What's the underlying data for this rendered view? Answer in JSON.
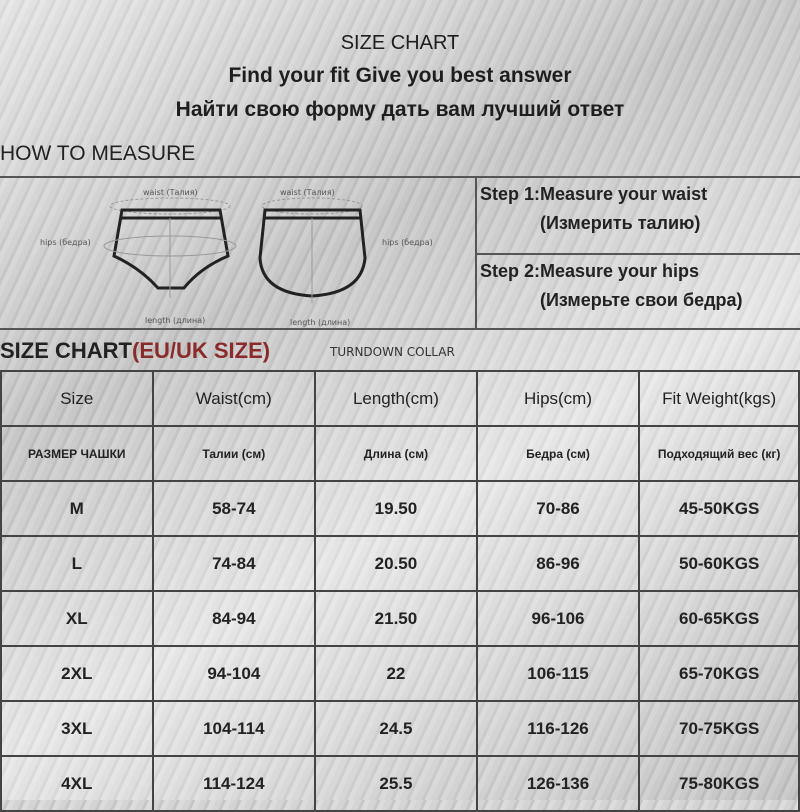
{
  "header": {
    "title": "SIZE CHART",
    "subtitle_en": "Find your fit Give you best answer",
    "subtitle_ru": "Найти свою форму дать вам лучший ответ"
  },
  "measure": {
    "heading": "HOW TO MEASURE",
    "labels": {
      "waist": "waist (Талия)",
      "hips": "hips (бедра)",
      "length": "length (длина)"
    },
    "steps": [
      {
        "en": "Step 1:Measure your waist",
        "ru": "(Измерить талию)"
      },
      {
        "en": "Step 2:Measure your hips",
        "ru": "(Измерьте свои бедра)"
      }
    ]
  },
  "size_chart": {
    "heading": "SIZE CHART",
    "heading_accent": "(EU/UK SIZE)",
    "overlay_text": "TURNDOWN COLLAR",
    "columns": [
      "Size",
      "Waist(cm)",
      "Length(cm)",
      "Hips(cm)",
      "Fit  Weight(kgs)"
    ],
    "columns_ru": [
      "РАЗМЕР ЧАШКИ",
      "Талии (см)",
      "Длина (см)",
      "Бедра (см)",
      "Подходящий вес (кг)"
    ],
    "rows": [
      [
        "M",
        "58-74",
        "19.50",
        "70-86",
        "45-50KGS"
      ],
      [
        "L",
        "74-84",
        "20.50",
        "86-96",
        "50-60KGS"
      ],
      [
        "XL",
        "84-94",
        "21.50",
        "96-106",
        "60-65KGS"
      ],
      [
        "2XL",
        "94-104",
        "22",
        "106-115",
        "65-70KGS"
      ],
      [
        "3XL",
        "104-114",
        "24.5",
        "116-126",
        "70-75KGS"
      ],
      [
        "4XL",
        "114-124",
        "25.5",
        "126-136",
        "75-80KGS"
      ]
    ]
  },
  "colors": {
    "accent": "#8b2a2a",
    "lines": "#444444"
  }
}
